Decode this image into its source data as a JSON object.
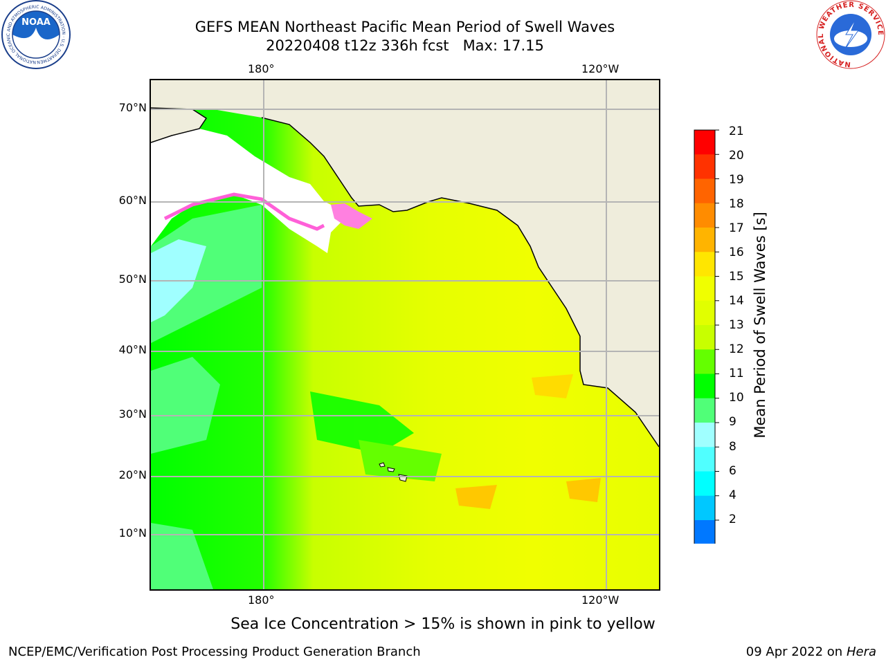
{
  "header": {
    "title_line1": "GEFS MEAN Northeast Pacific Mean Period of Swell Waves",
    "title_line2": "20220408 t12z 336h fcst   Max: 17.15"
  },
  "logos": {
    "noaa_text": "NOAA",
    "noaa_ring": "NATIONAL OCEANIC AND ATMOSPHERIC ADMINISTRATION · U.S. DEPARTMENT OF COMMERCE",
    "nws_ring": "NATIONAL WEATHER SERVICE"
  },
  "map": {
    "top_lon_labels": [
      "180°",
      "120°W"
    ],
    "bottom_lon_labels": [
      "180°",
      "120°W"
    ],
    "lat_labels": [
      "70°N",
      "60°N",
      "50°N",
      "40°N",
      "30°N",
      "20°N",
      "10°N"
    ],
    "colors": {
      "land": "#efeddc",
      "coast": "#000000",
      "grid": "#b4b4b4",
      "ice": "#ff60d8"
    }
  },
  "colorbar": {
    "title": "Mean Period of Swell Waves [s]",
    "ticks": [
      "21",
      "20",
      "19",
      "18",
      "17",
      "16",
      "15",
      "14",
      "13",
      "12",
      "11",
      "10",
      "9",
      "8",
      "6",
      "4",
      "2"
    ],
    "colors": [
      "#ff0000",
      "#ff3200",
      "#ff6400",
      "#ff8c00",
      "#ffb400",
      "#ffe600",
      "#f0ff00",
      "#e1ff00",
      "#c8ff00",
      "#64ff00",
      "#00ff00",
      "#50ff78",
      "#a0ffff",
      "#50ffff",
      "#00ffff",
      "#00c8ff",
      "#0078ff"
    ],
    "under_color": "#0000ff"
  },
  "footer": {
    "note": "Sea Ice Concentration > 15% is shown in pink to yellow",
    "credit_left": "NCEP/EMC/Verification Post Processing Product Generation Branch",
    "date": "09 Apr 2022 on ",
    "machine": "Hera"
  }
}
